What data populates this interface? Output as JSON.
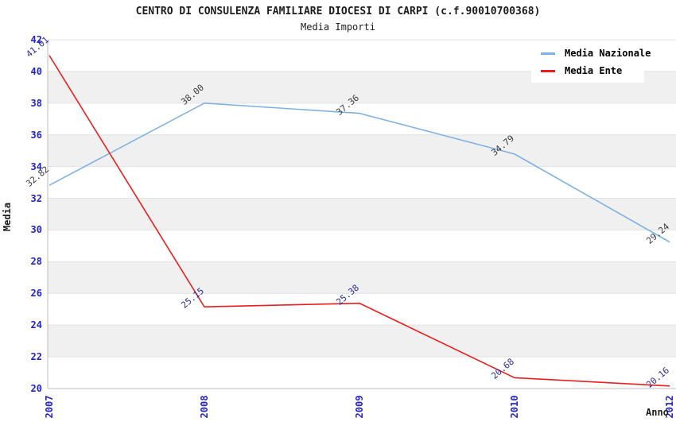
{
  "title": "CENTRO DI CONSULENZA FAMILIARE DIOCESI DI CARPI (c.f.90010700368)",
  "subtitle": "Media Importi",
  "legend": {
    "items": [
      {
        "label": "Media Nazionale",
        "color": "#7eb2e4"
      },
      {
        "label": "Media Ente",
        "color": "#ee1c1c"
      }
    ]
  },
  "chart_data": {
    "type": "line",
    "title": "CENTRO DI CONSULENZA FAMILIARE DIOCESI DI CARPI (c.f.90010700368)",
    "subtitle": "Media Importi",
    "categories": [
      "2007",
      "2008",
      "2009",
      "2010",
      "2012"
    ],
    "series": [
      {
        "name": "Media Nazionale",
        "color": "#7eb2e4",
        "label_color": "#3a3a3a",
        "values": [
          32.82,
          38.0,
          37.36,
          34.79,
          29.24
        ]
      },
      {
        "name": "Media Ente",
        "color": "#ee1c1c",
        "label_color": "#2b2ba0",
        "values": [
          41.01,
          25.15,
          25.38,
          20.68,
          20.16
        ]
      }
    ],
    "xlabel": "Anno",
    "ylabel": "Media",
    "ylim": [
      20,
      42
    ],
    "ytick_step": 2,
    "grid": true,
    "legend_position": "top-right",
    "colors": {
      "axis_tick_label": "#2323cc",
      "grid_line": "#e2e2e2",
      "band_fill": "#f0f0f0",
      "spine": "#c9c9c9",
      "title_text": "#1c1c1c"
    }
  }
}
